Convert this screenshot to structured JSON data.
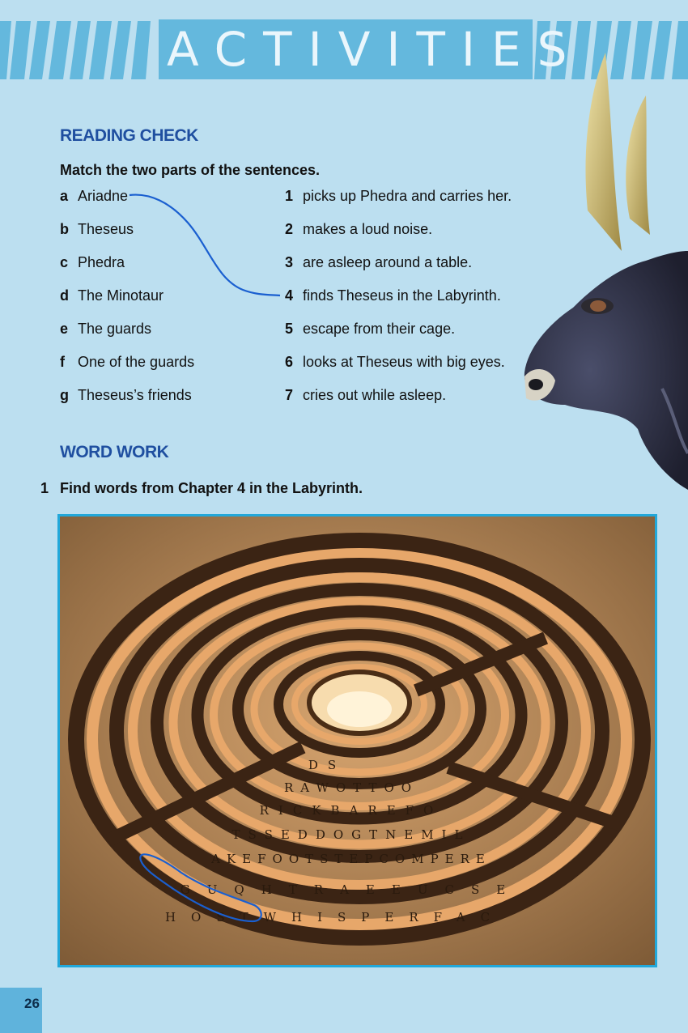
{
  "banner": {
    "title": "ACTIVITIES"
  },
  "reading_check": {
    "title": "READING CHECK",
    "instruction": "Match the two parts of the sentences.",
    "left": [
      {
        "key": "a",
        "text": "Ariadne"
      },
      {
        "key": "b",
        "text": "Theseus"
      },
      {
        "key": "c",
        "text": "Phedra"
      },
      {
        "key": "d",
        "text": "The Minotaur"
      },
      {
        "key": "e",
        "text": "The guards"
      },
      {
        "key": "f",
        "text": "One of the guards"
      },
      {
        "key": "g",
        "text": "Theseus’s friends"
      }
    ],
    "right": [
      {
        "key": "1",
        "text": "picks up Phedra and carries her."
      },
      {
        "key": "2",
        "text": "makes a loud noise."
      },
      {
        "key": "3",
        "text": "are asleep around a table."
      },
      {
        "key": "4",
        "text": "finds Theseus in the Labyrinth."
      },
      {
        "key": "5",
        "text": "escape from their cage."
      },
      {
        "key": "6",
        "text": "looks at Theseus with big eyes."
      },
      {
        "key": "7",
        "text": "cries out while asleep."
      }
    ],
    "example_match": {
      "from": "a",
      "to": "4"
    }
  },
  "word_work": {
    "title": "WORD WORK",
    "exercise_number": "1",
    "instruction": "Find words from Chapter 4 in the Labyrinth.",
    "maze_rows": [
      "DS",
      "RAWOTTOO",
      "RICKBAREFO",
      "TSSEDDOGTNEMIL",
      "AKEFOOTSTEPCOMPERE",
      "GUQHTRAEEUCSE",
      "HOSTWHISPERFAC"
    ],
    "circled_word": "GHOST"
  },
  "page_number": "26",
  "colors": {
    "background": "#bcdff0",
    "accent": "#64b8dd",
    "heading": "#1f4fa0",
    "frame": "#22a8da",
    "pen": "#1a5fd0"
  }
}
